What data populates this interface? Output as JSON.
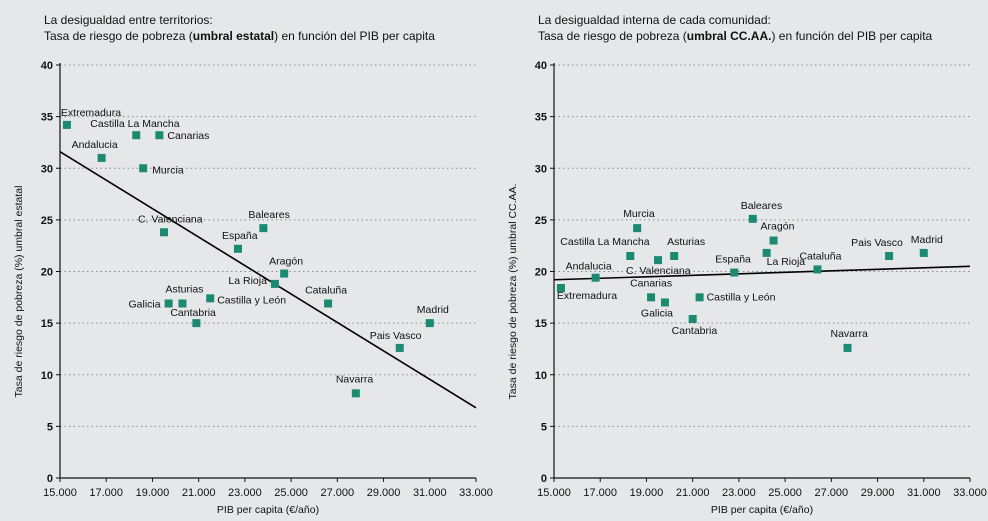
{
  "colors": {
    "background": "#e6e7e8",
    "marker": "#1a8a73",
    "grid": "#8a8a8a",
    "axis": "#111111",
    "trendline": "#000000"
  },
  "chart_data": [
    {
      "type": "scatter",
      "title_line1": "La desigualdad entre territorios:",
      "title_line2_pre": "Tasa de riesgo de pobreza (",
      "title_line2_bold": "umbral estatal",
      "title_line2_post": ") en función del PIB per capita",
      "xlabel": "PIB per capita (€/año)",
      "ylabel": "Tasa de riesgo de pobreza (%) umbral estatal",
      "xlim": [
        15000,
        33000
      ],
      "ylim": [
        0,
        40
      ],
      "xticks": [
        15000,
        17000,
        19000,
        21000,
        23000,
        25000,
        27000,
        29000,
        31000,
        33000
      ],
      "xtick_labels": [
        "15.000",
        "17.000",
        "19.000",
        "21.000",
        "23.000",
        "25.000",
        "27.000",
        "29.000",
        "31.000",
        "33.000"
      ],
      "yticks": [
        0,
        5,
        10,
        15,
        20,
        25,
        30,
        35,
        40
      ],
      "ytick_labels": [
        "0",
        "5",
        "10",
        "15",
        "20",
        "25",
        "30",
        "35",
        "40"
      ],
      "grid": "horizontal dotted",
      "trendline": {
        "x": [
          15000,
          33000
        ],
        "y": [
          31.6,
          6.8
        ]
      },
      "points": [
        {
          "name": "Extremadura",
          "x": 15300,
          "y": 34.2
        },
        {
          "name": "Castilla La Mancha",
          "x": 18300,
          "y": 33.2
        },
        {
          "name": "Canarias",
          "x": 19300,
          "y": 33.2
        },
        {
          "name": "Andalucia",
          "x": 16800,
          "y": 31.0
        },
        {
          "name": "Murcia",
          "x": 18600,
          "y": 30.0
        },
        {
          "name": "C. Valenciana",
          "x": 19500,
          "y": 23.8
        },
        {
          "name": "Baleares",
          "x": 23800,
          "y": 24.2
        },
        {
          "name": "España",
          "x": 22700,
          "y": 22.2
        },
        {
          "name": "Aragón",
          "x": 24700,
          "y": 19.8
        },
        {
          "name": "La Rioja",
          "x": 24300,
          "y": 18.8
        },
        {
          "name": "Galicia",
          "x": 19700,
          "y": 16.9
        },
        {
          "name": "Asturias",
          "x": 20300,
          "y": 16.9
        },
        {
          "name": "Castilla y León",
          "x": 21500,
          "y": 17.4
        },
        {
          "name": "Cantabria",
          "x": 20900,
          "y": 15.0
        },
        {
          "name": "Cataluña",
          "x": 26600,
          "y": 16.9
        },
        {
          "name": "Madrid",
          "x": 31000,
          "y": 15.0
        },
        {
          "name": "Pais Vasco",
          "x": 29700,
          "y": 12.6
        },
        {
          "name": "Navarra",
          "x": 27800,
          "y": 8.2
        }
      ]
    },
    {
      "type": "scatter",
      "title_line1": "La desigualdad interna de cada comunidad:",
      "title_line2_pre": "Tasa de riesgo de pobreza (",
      "title_line2_bold": "umbral CC.AA.",
      "title_line2_post": ") en función del PIB per capita",
      "xlabel": "PIB per capita (€/año)",
      "ylabel": "Tasa de riesgo de pobreza (%) umbral CC.AA.",
      "xlim": [
        15000,
        33000
      ],
      "ylim": [
        0,
        40
      ],
      "xticks": [
        15000,
        17000,
        19000,
        21000,
        23000,
        25000,
        27000,
        29000,
        31000,
        33000
      ],
      "xtick_labels": [
        "15.000",
        "17.000",
        "19.000",
        "21.000",
        "23.000",
        "25.000",
        "27.000",
        "29.000",
        "31.000",
        "33.000"
      ],
      "yticks": [
        0,
        5,
        10,
        15,
        20,
        25,
        30,
        35,
        40
      ],
      "ytick_labels": [
        "0",
        "5",
        "10",
        "15",
        "20",
        "25",
        "30",
        "35",
        "40"
      ],
      "grid": "horizontal dotted",
      "trendline": {
        "x": [
          15000,
          33000
        ],
        "y": [
          19.2,
          20.5
        ]
      },
      "points": [
        {
          "name": "Murcia",
          "x": 18600,
          "y": 24.2
        },
        {
          "name": "Baleares",
          "x": 23600,
          "y": 25.1
        },
        {
          "name": "Aragón",
          "x": 24500,
          "y": 23.0
        },
        {
          "name": "Castilla La Mancha",
          "x": 18300,
          "y": 21.5
        },
        {
          "name": "Asturias",
          "x": 20200,
          "y": 21.5
        },
        {
          "name": "C. Valenciana",
          "x": 19500,
          "y": 21.1
        },
        {
          "name": "España",
          "x": 22800,
          "y": 19.9
        },
        {
          "name": "La Rioja",
          "x": 24200,
          "y": 21.8
        },
        {
          "name": "Cataluña",
          "x": 26400,
          "y": 20.2
        },
        {
          "name": "Pais Vasco",
          "x": 29500,
          "y": 21.5
        },
        {
          "name": "Madrid",
          "x": 31000,
          "y": 21.8
        },
        {
          "name": "Andalucia",
          "x": 16800,
          "y": 19.4
        },
        {
          "name": "Extremadura",
          "x": 15300,
          "y": 18.4
        },
        {
          "name": "Canarias",
          "x": 19200,
          "y": 17.5
        },
        {
          "name": "Galicia",
          "x": 19800,
          "y": 17.0
        },
        {
          "name": "Castilla y León",
          "x": 21300,
          "y": 17.5
        },
        {
          "name": "Cantabria",
          "x": 21000,
          "y": 15.4
        },
        {
          "name": "Navarra",
          "x": 27700,
          "y": 12.6
        }
      ]
    }
  ]
}
